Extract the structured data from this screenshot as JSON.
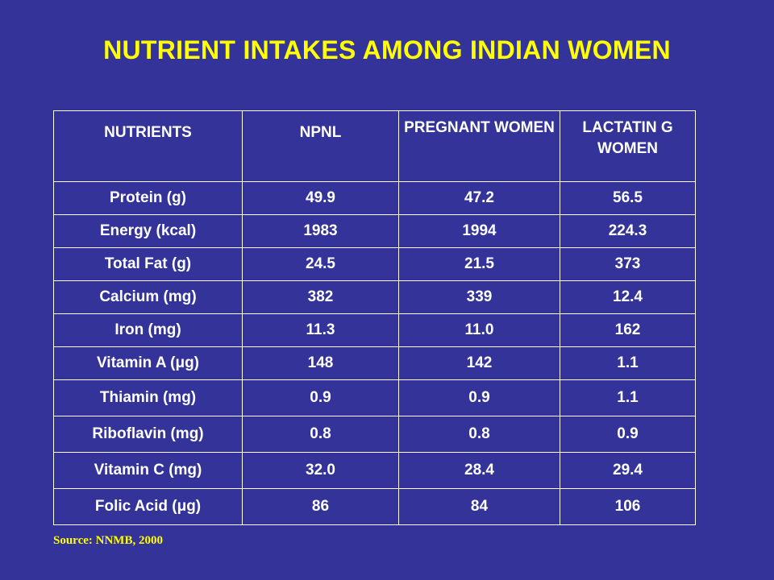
{
  "title": "NUTRIENT INTAKES AMONG INDIAN WOMEN",
  "table": {
    "headers": [
      "NUTRIENTS",
      "NPNL",
      "PREGNANT WOMEN",
      "LACTATIN G WOMEN"
    ],
    "rows": [
      [
        "Protein (g)",
        "49.9",
        "47.2",
        "56.5"
      ],
      [
        "Energy (kcal)",
        "1983",
        "1994",
        "224.3"
      ],
      [
        "Total Fat (g)",
        "24.5",
        "21.5",
        "373"
      ],
      [
        "Calcium (mg)",
        "382",
        "339",
        "12.4"
      ],
      [
        "Iron (mg)",
        "11.3",
        "11.0",
        "162"
      ],
      [
        "Vitamin A (μg)",
        "148",
        "142",
        "1.1"
      ],
      [
        "Thiamin (mg)",
        "0.9",
        "0.9",
        "1.1"
      ],
      [
        "Riboflavin (mg)",
        "0.8",
        "0.8",
        "0.9"
      ],
      [
        "Vitamin C (mg)",
        "32.0",
        "28.4",
        "29.4"
      ],
      [
        "Folic Acid (μg)",
        "86",
        "84",
        "106"
      ]
    ]
  },
  "source": "Source: NNMB, 2000",
  "colors": {
    "background": "#333399",
    "title": "#ffff00",
    "table_text": "#ffffff",
    "source": "#ffff00"
  }
}
